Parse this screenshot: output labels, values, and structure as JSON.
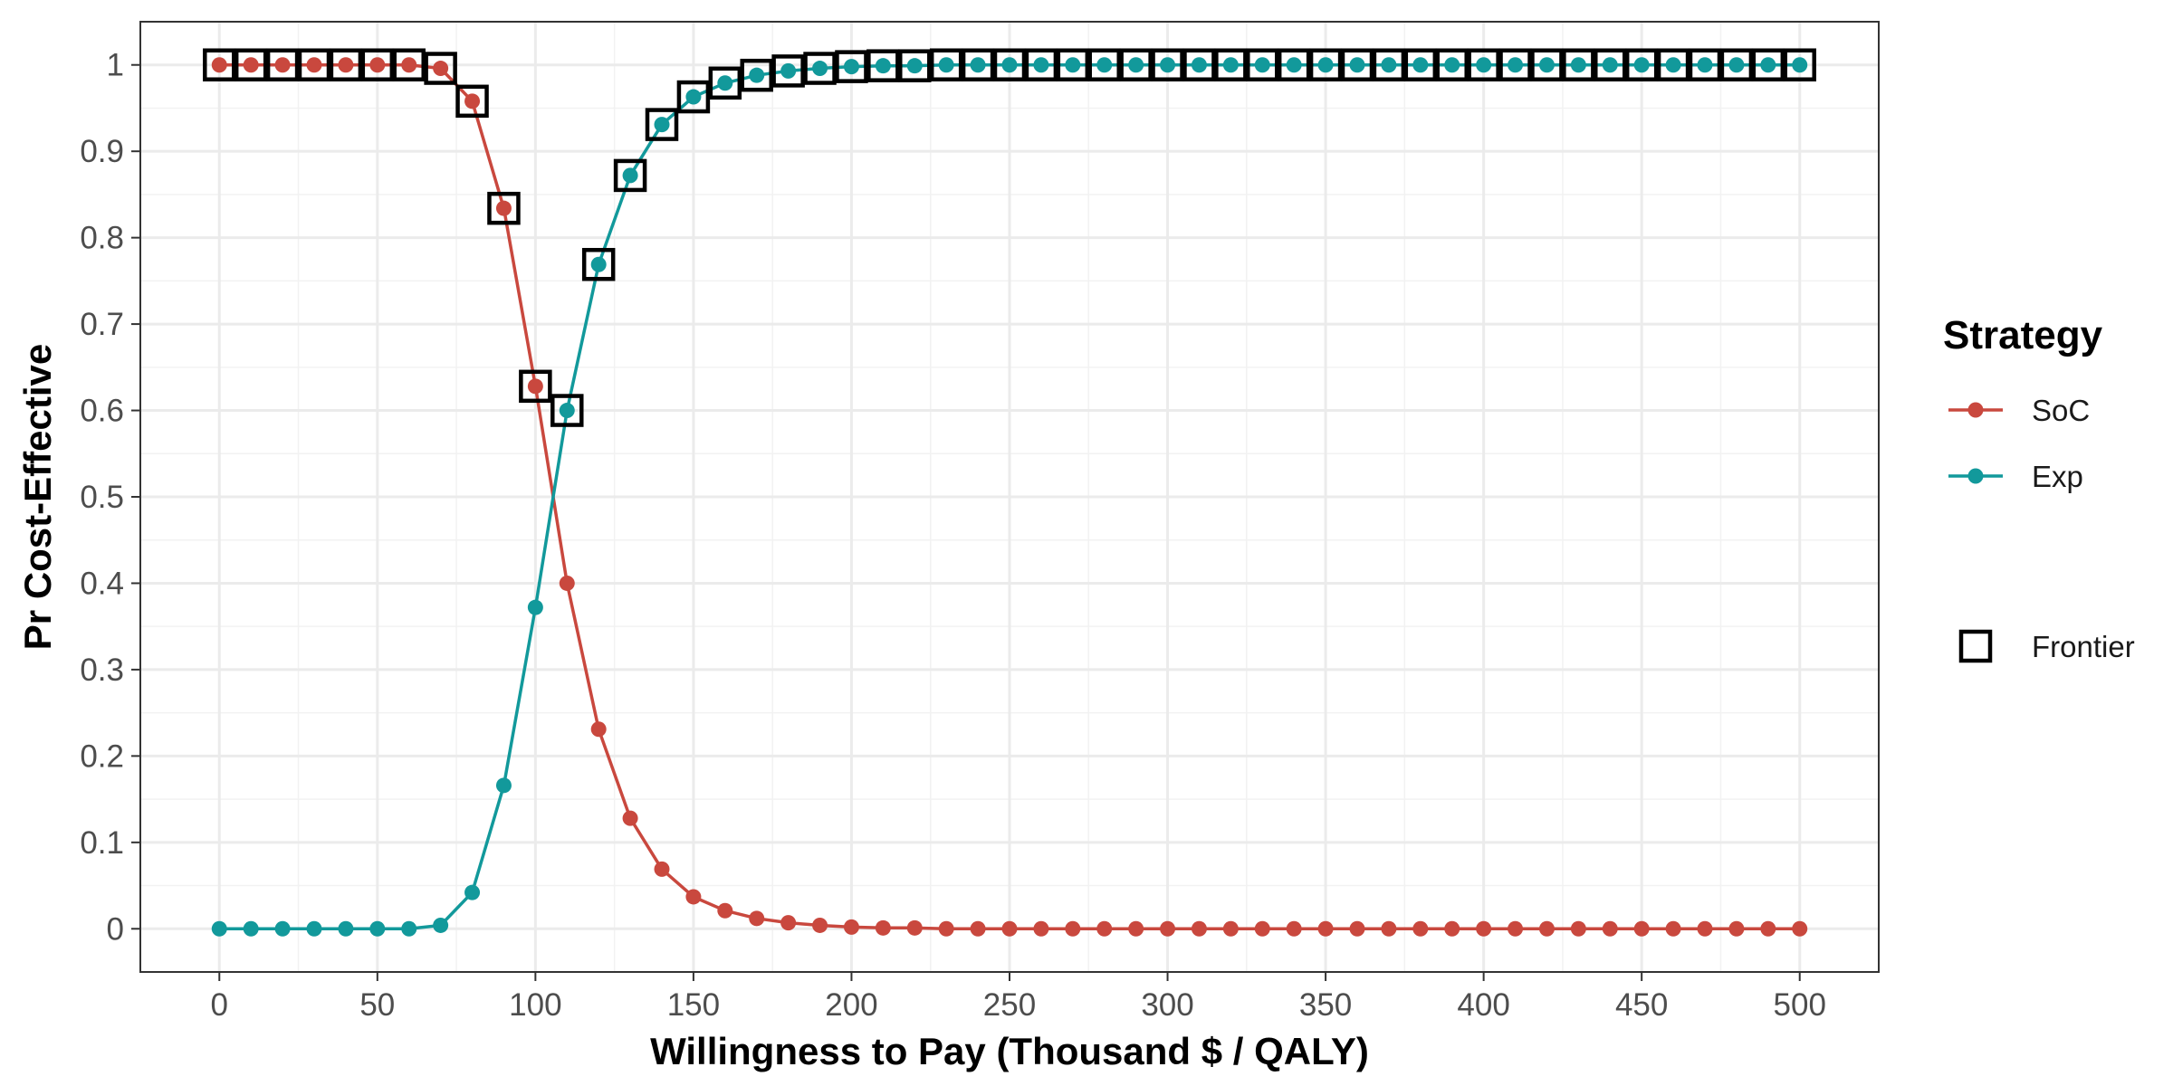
{
  "chart_data": {
    "type": "line",
    "xlabel": "Willingness to Pay (Thousand $ / QALY)",
    "ylabel": "Pr Cost-Effective",
    "xlim": [
      -25,
      525
    ],
    "ylim": [
      -0.05,
      1.05
    ],
    "xticks": [
      0,
      50,
      100,
      150,
      200,
      250,
      300,
      350,
      400,
      450,
      500
    ],
    "yticks": [
      0,
      0.1,
      0.2,
      0.3,
      0.4,
      0.5,
      0.6,
      0.7,
      0.8,
      0.9,
      1
    ],
    "xtick_labels": [
      "0",
      "50",
      "100",
      "150",
      "200",
      "250",
      "300",
      "350",
      "400",
      "450",
      "500"
    ],
    "ytick_labels": [
      "0",
      "0.1",
      "0.2",
      "0.3",
      "0.4",
      "0.5",
      "0.6",
      "0.7",
      "0.8",
      "0.9",
      "1"
    ],
    "grid": true,
    "legend_position": "right",
    "legend_title": "Strategy",
    "x": [
      0,
      10,
      20,
      30,
      40,
      50,
      60,
      70,
      80,
      90,
      100,
      110,
      120,
      130,
      140,
      150,
      160,
      170,
      180,
      190,
      200,
      210,
      220,
      230,
      240,
      250,
      260,
      270,
      280,
      290,
      300,
      310,
      320,
      330,
      340,
      350,
      360,
      370,
      380,
      390,
      400,
      410,
      420,
      430,
      440,
      450,
      460,
      470,
      480,
      490,
      500
    ],
    "series": [
      {
        "name": "SoC",
        "color": "#c9483e",
        "values": [
          1,
          1,
          1,
          1,
          1,
          1,
          1,
          0.996,
          0.958,
          0.834,
          0.628,
          0.4,
          0.231,
          0.128,
          0.069,
          0.037,
          0.021,
          0.012,
          0.007,
          0.004,
          0.002,
          0.001,
          0.001,
          0,
          0,
          0,
          0,
          0,
          0,
          0,
          0,
          0,
          0,
          0,
          0,
          0,
          0,
          0,
          0,
          0,
          0,
          0,
          0,
          0,
          0,
          0,
          0,
          0,
          0,
          0,
          0
        ]
      },
      {
        "name": "Exp",
        "color": "#12999b",
        "values": [
          0,
          0,
          0,
          0,
          0,
          0,
          0,
          0.004,
          0.042,
          0.166,
          0.372,
          0.6,
          0.769,
          0.872,
          0.931,
          0.963,
          0.979,
          0.988,
          0.993,
          0.996,
          0.998,
          0.999,
          0.999,
          1,
          1,
          1,
          1,
          1,
          1,
          1,
          1,
          1,
          1,
          1,
          1,
          1,
          1,
          1,
          1,
          1,
          1,
          1,
          1,
          1,
          1,
          1,
          1,
          1,
          1,
          1,
          1
        ]
      }
    ],
    "frontier": {
      "name": "Frontier",
      "color": "#000000",
      "values": [
        1,
        1,
        1,
        1,
        1,
        1,
        1,
        0.996,
        0.958,
        0.834,
        0.628,
        0.6,
        0.769,
        0.872,
        0.931,
        0.963,
        0.979,
        0.988,
        0.993,
        0.996,
        0.998,
        0.999,
        0.999,
        1,
        1,
        1,
        1,
        1,
        1,
        1,
        1,
        1,
        1,
        1,
        1,
        1,
        1,
        1,
        1,
        1,
        1,
        1,
        1,
        1,
        1,
        1,
        1,
        1,
        1,
        1,
        1
      ]
    }
  }
}
